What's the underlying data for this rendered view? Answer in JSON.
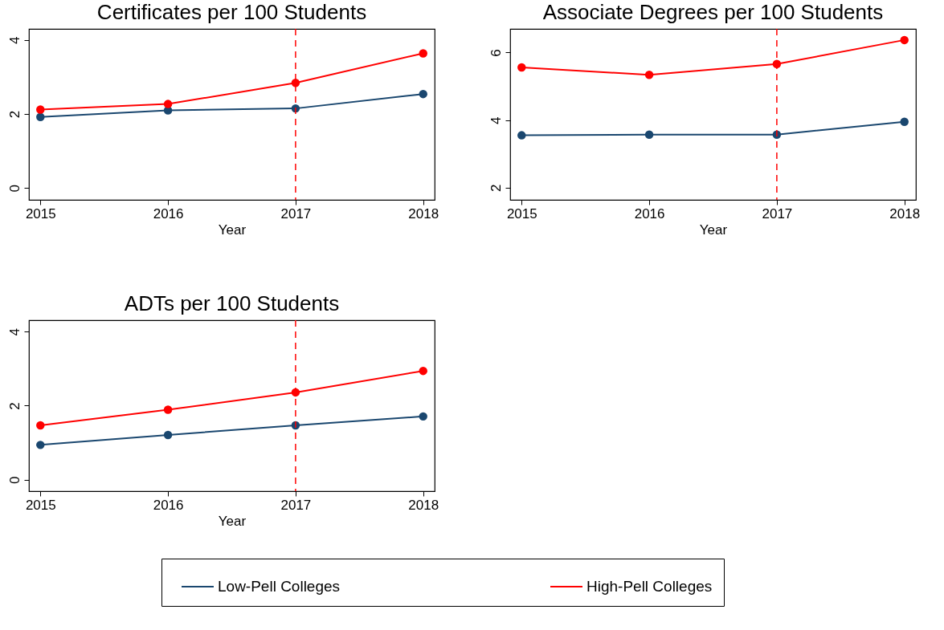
{
  "chart_data": [
    {
      "type": "line",
      "title": "Certificates per 100 Students",
      "xlabel": "Year",
      "x": [
        2015,
        2016,
        2017,
        2018
      ],
      "xlim": [
        2014.91,
        2018.09
      ],
      "xticks": [
        2015,
        2016,
        2017,
        2018
      ],
      "ylim": [
        -0.32,
        4.3
      ],
      "yticks": [
        0,
        2,
        4
      ],
      "marker": "circle",
      "series": [
        {
          "color": "#1a476f",
          "values": [
            1.92,
            2.1,
            2.15,
            2.54
          ]
        },
        {
          "color": "#ff0000",
          "values": [
            2.12,
            2.27,
            2.84,
            3.64
          ]
        }
      ],
      "ref_lines": [
        {
          "axis": "x",
          "value": 2017,
          "color": "#ff0000",
          "line_style": "dashed"
        }
      ]
    },
    {
      "type": "line",
      "title": "Associate Degrees per 100 Students",
      "xlabel": "Year",
      "x": [
        2015,
        2016,
        2017,
        2018
      ],
      "xlim": [
        2014.91,
        2018.09
      ],
      "xticks": [
        2015,
        2016,
        2017,
        2018
      ],
      "ylim": [
        1.64,
        6.7
      ],
      "yticks": [
        2,
        4,
        6
      ],
      "marker": "circle",
      "series": [
        {
          "color": "#1a476f",
          "values": [
            3.55,
            3.57,
            3.57,
            3.95
          ]
        },
        {
          "color": "#ff0000",
          "values": [
            5.56,
            5.34,
            5.66,
            6.37
          ]
        }
      ],
      "ref_lines": [
        {
          "axis": "x",
          "value": 2017,
          "color": "#ff0000",
          "line_style": "dashed"
        }
      ]
    },
    {
      "type": "line",
      "title": "ADTs per 100 Students",
      "xlabel": "Year",
      "x": [
        2015,
        2016,
        2017,
        2018
      ],
      "xlim": [
        2014.91,
        2018.09
      ],
      "xticks": [
        2015,
        2016,
        2017,
        2018
      ],
      "ylim": [
        -0.31,
        4.31
      ],
      "yticks": [
        0,
        2,
        4
      ],
      "marker": "circle",
      "legend": "bottom",
      "series": [
        {
          "name": "Low-Pell Colleges",
          "color": "#1a476f",
          "values": [
            0.94,
            1.21,
            1.47,
            1.71
          ]
        },
        {
          "name": "High-Pell Colleges",
          "color": "#ff0000",
          "values": [
            1.47,
            1.89,
            2.36,
            2.94
          ]
        }
      ],
      "ref_lines": [
        {
          "axis": "x",
          "value": 2017,
          "color": "#ff0000",
          "line_style": "dashed"
        }
      ]
    }
  ]
}
